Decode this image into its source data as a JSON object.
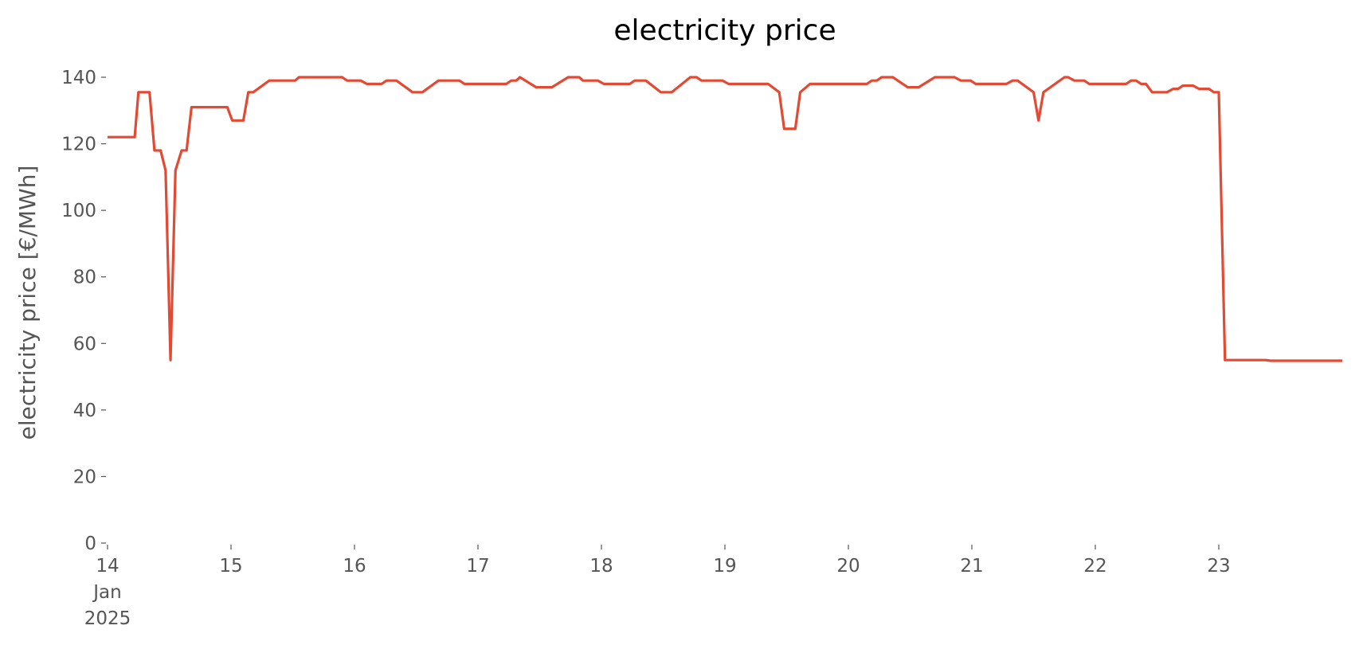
{
  "chart_data": {
    "type": "line",
    "title": "electricity price",
    "ylabel": "electricity price [€/MWh]",
    "x": [
      14,
      14.22,
      14.25,
      14.34,
      14.38,
      14.43,
      14.47,
      14.51,
      14.55,
      14.6,
      14.64,
      14.68,
      14.97,
      15.01,
      15.1,
      15.14,
      15.18,
      15.31,
      15.52,
      15.55,
      15.9,
      15.94,
      16.05,
      16.1,
      16.22,
      16.26,
      16.34,
      16.47,
      16.55,
      16.68,
      16.85,
      16.89,
      17.23,
      17.27,
      17.31,
      17.34,
      17.47,
      17.6,
      17.73,
      17.82,
      17.85,
      17.97,
      18.02,
      18.23,
      18.27,
      18.36,
      18.48,
      18.57,
      18.72,
      18.77,
      18.81,
      18.98,
      19.03,
      19.35,
      19.44,
      19.48,
      19.57,
      19.61,
      19.69,
      20.15,
      20.19,
      20.23,
      20.27,
      20.36,
      20.48,
      20.57,
      20.7,
      20.86,
      20.91,
      20.99,
      21.03,
      21.28,
      21.33,
      21.37,
      21.5,
      21.54,
      21.58,
      21.75,
      21.78,
      21.83,
      21.91,
      21.95,
      22.25,
      22.29,
      22.33,
      22.37,
      22.41,
      22.46,
      22.58,
      22.63,
      22.67,
      22.71,
      22.79,
      22.84,
      22.92,
      22.96,
      23.0,
      23.05,
      23.38,
      23.42,
      24
    ],
    "values": [
      122,
      122,
      135.5,
      135.5,
      118,
      118,
      112,
      55,
      112,
      118,
      118,
      131,
      131,
      127,
      127,
      135.5,
      135.5,
      139,
      139,
      140,
      140,
      139,
      139,
      138,
      138,
      139,
      139,
      135.5,
      135.5,
      139,
      139,
      138,
      138,
      139,
      139,
      140,
      137,
      137,
      140,
      140,
      139,
      139,
      138,
      138,
      139,
      139,
      135.5,
      135.5,
      140,
      140,
      139,
      139,
      138,
      138,
      135.5,
      124.5,
      124.5,
      135.5,
      138,
      138,
      139,
      139,
      140,
      140,
      137,
      137,
      140,
      140,
      139,
      139,
      138,
      138,
      139,
      139,
      135.5,
      127,
      135.5,
      140,
      140,
      139,
      139,
      138,
      138,
      139,
      139,
      138,
      138,
      135.5,
      135.5,
      136.5,
      136.5,
      137.5,
      137.5,
      136.5,
      136.5,
      135.5,
      135.5,
      55,
      55,
      54.8,
      54.8
    ],
    "color": "#E24A33",
    "xlim": [
      14,
      24
    ],
    "xticks": [
      {
        "value": 14,
        "label": "14 Jan 2025"
      },
      15,
      16,
      17,
      18,
      19,
      20,
      21,
      22,
      23
    ],
    "ylim": [
      0,
      140
    ],
    "yticks": [
      0,
      20,
      40,
      60,
      80,
      100,
      120,
      140
    ],
    "grid": false
  }
}
